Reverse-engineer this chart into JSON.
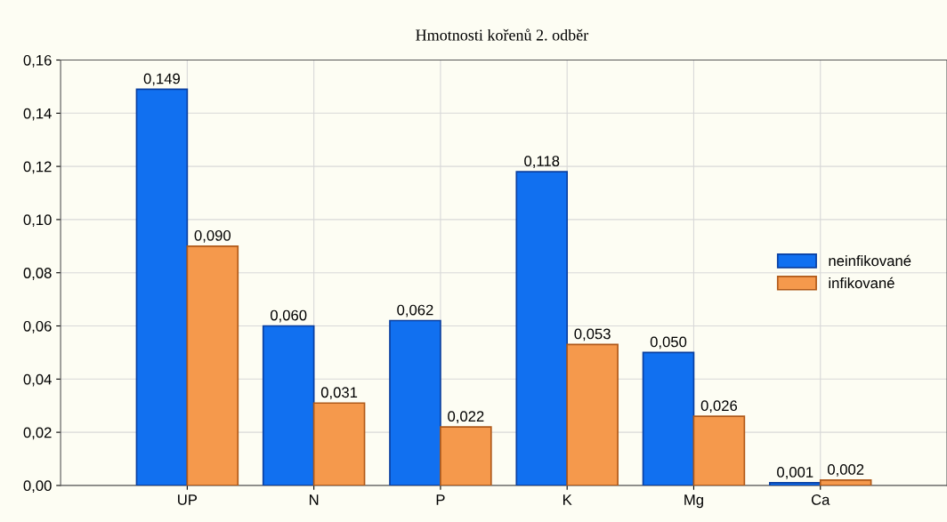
{
  "chart_data": {
    "type": "bar",
    "title": "Hmotnosti kořenů 2. odběr",
    "categories": [
      "UP",
      "N",
      "P",
      "K",
      "Mg",
      "Ca"
    ],
    "series": [
      {
        "name": "neinfikované",
        "color": "#1170f0",
        "values": [
          0.149,
          0.06,
          0.062,
          0.118,
          0.05,
          0.001
        ],
        "value_labels": [
          "0,149",
          "0,060",
          "0,062",
          "0,118",
          "0,050",
          "0,001"
        ]
      },
      {
        "name": "infikované",
        "color": "#f5994c",
        "values": [
          0.09,
          0.031,
          0.022,
          0.053,
          0.026,
          0.002
        ],
        "value_labels": [
          "0,090",
          "0,031",
          "0,022",
          "0,053",
          "0,026",
          "0,002"
        ]
      }
    ],
    "ylim": [
      0,
      0.16
    ],
    "yticks": [
      {
        "value": 0,
        "label": "0,00"
      },
      {
        "value": 0.02,
        "label": "0,02"
      },
      {
        "value": 0.04,
        "label": "0,04"
      },
      {
        "value": 0.06,
        "label": "0,06"
      },
      {
        "value": 0.08,
        "label": "0,08"
      },
      {
        "value": 0.1,
        "label": "0,10"
      },
      {
        "value": 0.12,
        "label": "0,12"
      },
      {
        "value": 0.14,
        "label": "0,14"
      },
      {
        "value": 0.16,
        "label": "0,16"
      }
    ],
    "grid": true,
    "legend": "center right"
  }
}
